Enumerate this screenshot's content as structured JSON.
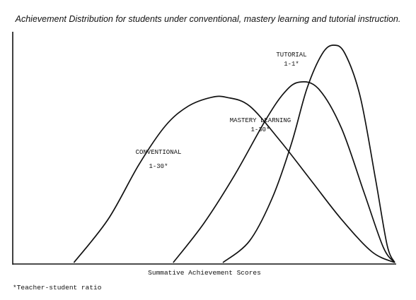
{
  "chart_data": {
    "type": "line",
    "title": "Achievement Distribution for students under conventional, mastery learning and tutorial instruction.",
    "xlabel": "Summative Achievement Scores",
    "ylabel": "",
    "footnote": "*Teacher-student ratio",
    "grid": false,
    "legend": "none",
    "xlim": [
      0,
      100
    ],
    "ylim": [
      0,
      100
    ],
    "series": [
      {
        "name": "CONVENTIONAL",
        "label_lines": [
          "CONVENTIONAL",
          "1-30*"
        ],
        "color": "#111111",
        "x": [
          16,
          25,
          33,
          40,
          46,
          52,
          56,
          62,
          70,
          78,
          86,
          94,
          100
        ],
        "y": [
          0,
          20,
          45,
          63,
          72,
          76,
          76,
          72,
          56,
          38,
          20,
          5,
          0
        ]
      },
      {
        "name": "MASTERY LEARNING",
        "label_lines": [
          "MASTERY LEARNING",
          "1-30*"
        ],
        "color": "#111111",
        "x": [
          42,
          50,
          58,
          66,
          71,
          75,
          80,
          86,
          92,
          97,
          100
        ],
        "y": [
          0,
          18,
          40,
          65,
          78,
          83,
          80,
          62,
          32,
          7,
          0
        ]
      },
      {
        "name": "TUTORIAL",
        "label_lines": [
          "TUTORIAL",
          "1-1*"
        ],
        "color": "#111111",
        "x": [
          55,
          62,
          68,
          73,
          77,
          81,
          84,
          87,
          91,
          95,
          98,
          100
        ],
        "y": [
          0,
          10,
          30,
          55,
          80,
          96,
          100,
          96,
          76,
          38,
          8,
          0
        ]
      }
    ]
  }
}
